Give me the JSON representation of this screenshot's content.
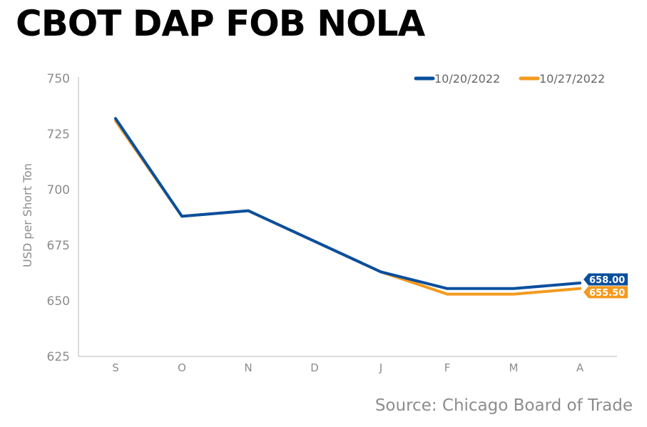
{
  "title": "CBOT DAP FOB NOLA",
  "source": "Source: Chicago Board of Trade",
  "chart_data": {
    "type": "line",
    "title": "CBOT DAP FOB NOLA",
    "xlabel": "",
    "ylabel": "USD per Short Ton",
    "categories": [
      "S",
      "O",
      "N",
      "D",
      "J",
      "F",
      "M",
      "A"
    ],
    "ylim": [
      625,
      750
    ],
    "yticks": [
      625,
      650,
      675,
      700,
      725,
      750
    ],
    "grid": false,
    "legend_position": "top-right",
    "series": [
      {
        "name": "10/20/2022",
        "color": "#0a4f9e",
        "values": [
          732.0,
          688.0,
          690.5,
          null,
          663.0,
          655.5,
          655.5,
          658.0
        ],
        "end_label": "658.00"
      },
      {
        "name": "10/27/2022",
        "color": "#f39a1e",
        "values": [
          731.0,
          688.0,
          690.5,
          null,
          663.0,
          653.0,
          653.0,
          655.5
        ],
        "end_label": "655.50"
      }
    ]
  }
}
